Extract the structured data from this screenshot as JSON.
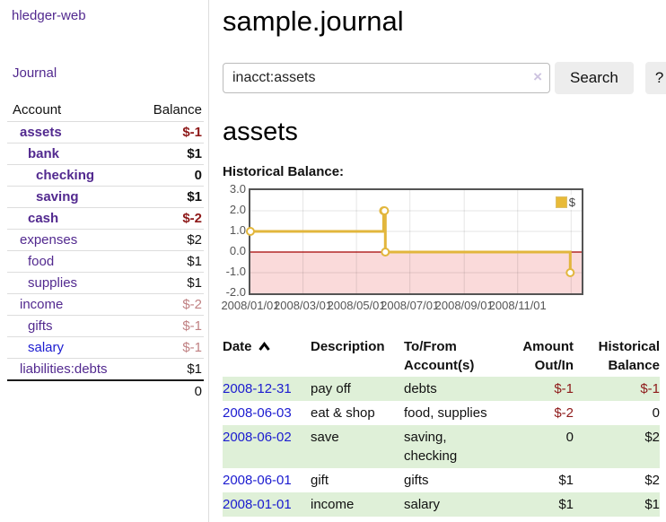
{
  "colors": {
    "link_purple": "#52298f",
    "link_blue": "#1b1bd0",
    "negative_strong": "#8e1919",
    "negative_dim": "#c08183",
    "row_stripe_green": "#dff0d8",
    "chart_line_gold": "#e2b63c",
    "chart_negative_fill": "#fadada",
    "chart_zero_line": "#a40000",
    "chart_border": "#545454",
    "divider": "#dddddd"
  },
  "sidebar": {
    "app_title": "hledger-web",
    "journal_link": "Journal",
    "accounts": {
      "header_account": "Account",
      "header_balance": "Balance",
      "rows": [
        {
          "name": "assets",
          "depth": 0,
          "balance": "$-1",
          "bold": true,
          "neg": "strong",
          "link": "purple"
        },
        {
          "name": "bank",
          "depth": 1,
          "balance": "$1",
          "bold": true,
          "neg": "none",
          "link": "purple"
        },
        {
          "name": "checking",
          "depth": 2,
          "balance": "0",
          "bold": true,
          "neg": "none",
          "link": "purple"
        },
        {
          "name": "saving",
          "depth": 2,
          "balance": "$1",
          "bold": true,
          "neg": "none",
          "link": "purple"
        },
        {
          "name": "cash",
          "depth": 1,
          "balance": "$-2",
          "bold": true,
          "neg": "strong",
          "link": "purple"
        },
        {
          "name": "expenses",
          "depth": 0,
          "balance": "$2",
          "bold": false,
          "neg": "none",
          "link": "purple"
        },
        {
          "name": "food",
          "depth": 1,
          "balance": "$1",
          "bold": false,
          "neg": "none",
          "link": "purple"
        },
        {
          "name": "supplies",
          "depth": 1,
          "balance": "$1",
          "bold": false,
          "neg": "none",
          "link": "purple"
        },
        {
          "name": "income",
          "depth": 0,
          "balance": "$-2",
          "bold": false,
          "neg": "dim",
          "link": "purple"
        },
        {
          "name": "gifts",
          "depth": 1,
          "balance": "$-1",
          "bold": false,
          "neg": "dim",
          "link": "purple"
        },
        {
          "name": "salary",
          "depth": 1,
          "balance": "$-1",
          "bold": false,
          "neg": "dim",
          "link": "blue"
        },
        {
          "name": "liabilities:debts",
          "depth": 0,
          "balance": "$1",
          "bold": false,
          "neg": "none",
          "link": "purple"
        }
      ],
      "total": "0"
    }
  },
  "main": {
    "title": "sample.journal",
    "search": {
      "value": "inacct:assets",
      "button_label": "Search",
      "help_label": "?",
      "clear_icon": "×"
    },
    "account_heading": "assets",
    "chart_label": "Historical Balance:"
  },
  "chart_data": {
    "type": "line",
    "title": "Historical Balance",
    "step": true,
    "legend": [
      {
        "label": "$",
        "color": "#e8ba38"
      }
    ],
    "legend_position": "top-right",
    "grid": true,
    "x_range": [
      "2008-01-01",
      "2009-01-13"
    ],
    "ylim": [
      -2,
      3
    ],
    "y_ticks": [
      3.0,
      2.0,
      1.0,
      0.0,
      -1.0,
      -2.0
    ],
    "y_tick_labels": [
      "3.0",
      "2.0",
      "1.0",
      "0.0",
      "-1.0",
      "-2.0"
    ],
    "x_ticks": [
      {
        "date": "2008-01-01",
        "label": "2008/01/01"
      },
      {
        "date": "2008-03-01",
        "label": "2008/03/01"
      },
      {
        "date": "2008-05-01",
        "label": "2008/05/01"
      },
      {
        "date": "2008-07-01",
        "label": "2008/07/01"
      },
      {
        "date": "2008-09-01",
        "label": "2008/09/01"
      },
      {
        "date": "2008-11-01",
        "label": "2008/11/01"
      },
      {
        "date": "2009-01-01",
        "label": ""
      }
    ],
    "series": [
      {
        "name": "$",
        "points": [
          {
            "date": "2008-01-01",
            "value": 1
          },
          {
            "date": "2008-06-01",
            "value": 2
          },
          {
            "date": "2008-06-02",
            "value": 2
          },
          {
            "date": "2008-06-03",
            "value": 0
          },
          {
            "date": "2008-12-31",
            "value": -1
          }
        ]
      }
    ],
    "negative_region_below": 0
  },
  "transactions": {
    "headers": {
      "date": "Date",
      "description": "Description",
      "accounts": "To/From Account(s)",
      "amount": "Amount Out/In",
      "balance": "Historical Balance"
    },
    "sort": "date-ascending",
    "rows": [
      {
        "date": "2008-12-31",
        "description": "pay off",
        "accounts": "debts",
        "amount": "$-1",
        "balance": "$-1"
      },
      {
        "date": "2008-06-03",
        "description": "eat & shop",
        "accounts": "food, supplies",
        "amount": "$-2",
        "balance": "0"
      },
      {
        "date": "2008-06-02",
        "description": "save",
        "accounts": "saving, checking",
        "amount": "0",
        "balance": "$2"
      },
      {
        "date": "2008-06-01",
        "description": "gift",
        "accounts": "gifts",
        "amount": "$1",
        "balance": "$2"
      },
      {
        "date": "2008-01-01",
        "description": "income",
        "accounts": "salary",
        "amount": "$1",
        "balance": "$1"
      }
    ]
  }
}
